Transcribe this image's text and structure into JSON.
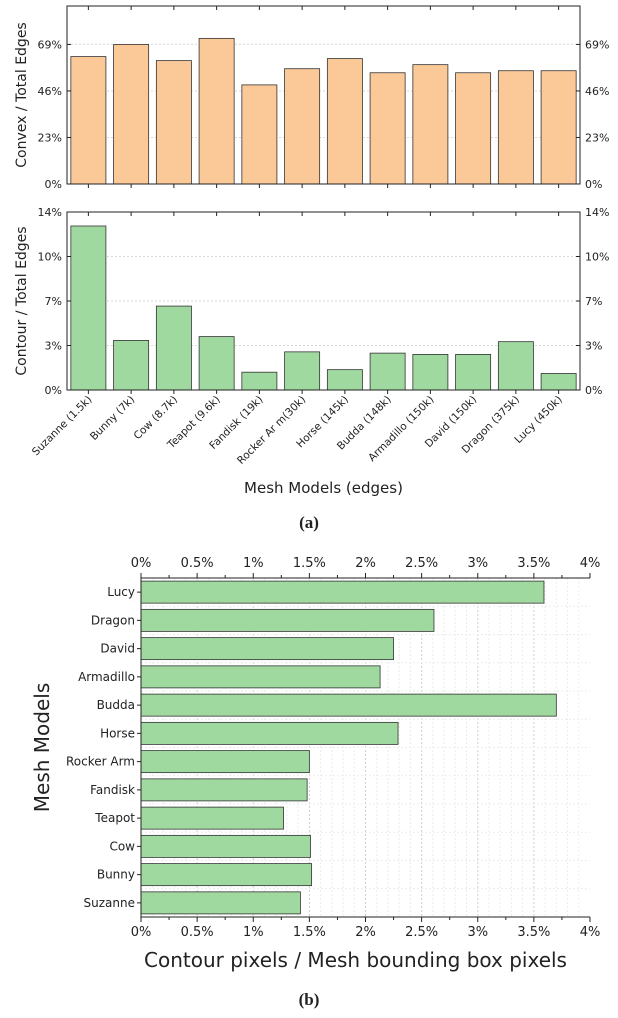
{
  "chart_data": [
    {
      "type": "bar",
      "categories": [
        "Suzanne (1.5k)",
        "Bunny (7k)",
        "Cow (8.7k)",
        "Teapot (9.6k)",
        "Fandisk (19k)",
        "Rocker Ar m(30k)",
        "Horse (145k)",
        "Budda (148k)",
        "Armadillo (150k)",
        "David (150k)",
        "Dragon (375k)",
        "Lucy (450k)"
      ],
      "values": [
        63,
        69,
        61,
        72,
        49,
        57,
        62,
        55,
        59,
        55,
        56,
        56
      ],
      "ylabel": "Convex / Total Edges",
      "yticks": [
        "0%",
        "23%",
        "46%",
        "69%"
      ],
      "ylim": [
        0,
        88
      ],
      "bar_color": "#fbc898",
      "grid": true
    },
    {
      "type": "bar",
      "categories": [
        "Suzanne (1.5k)",
        "Bunny (7k)",
        "Cow (8.7k)",
        "Teapot (9.6k)",
        "Fandisk (19k)",
        "Rocker Ar m(30k)",
        "Horse (145k)",
        "Budda (148k)",
        "Armadillo (150k)",
        "David (150k)",
        "Dragon (375k)",
        "Lucy (450k)"
      ],
      "values": [
        12.9,
        3.9,
        6.6,
        4.2,
        1.4,
        3.0,
        1.6,
        2.9,
        2.8,
        2.8,
        3.8,
        1.3
      ],
      "xlabel": "Mesh Models (edges)",
      "ylabel": "Contour / Total Edges",
      "yticks": [
        "0%",
        "3%",
        "7%",
        "10%",
        "14%"
      ],
      "ylim": [
        0,
        14
      ],
      "bar_color": "#a0d9a0",
      "grid": true
    },
    {
      "type": "bar",
      "orientation": "horizontal",
      "categories": [
        "Lucy",
        "Dragon",
        "David",
        "Armadillo",
        "Budda",
        "Horse",
        "Rocker Arm",
        "Fandisk",
        "Teapot",
        "Cow",
        "Bunny",
        "Suzanne"
      ],
      "values": [
        3.59,
        2.61,
        2.25,
        2.13,
        3.7,
        2.29,
        1.5,
        1.48,
        1.27,
        1.51,
        1.52,
        1.42
      ],
      "xlabel": "Contour pixels / Mesh bounding box pixels",
      "ylabel": "Mesh Models",
      "xticks": [
        "0%",
        "0.5%",
        "1%",
        "1.5%",
        "2%",
        "2.5%",
        "3%",
        "3.5%",
        "4%"
      ],
      "xlim": [
        0,
        4
      ],
      "bar_color": "#a0d9a0",
      "grid": true
    }
  ],
  "captions": {
    "a": "(a)",
    "b": "(b)"
  }
}
